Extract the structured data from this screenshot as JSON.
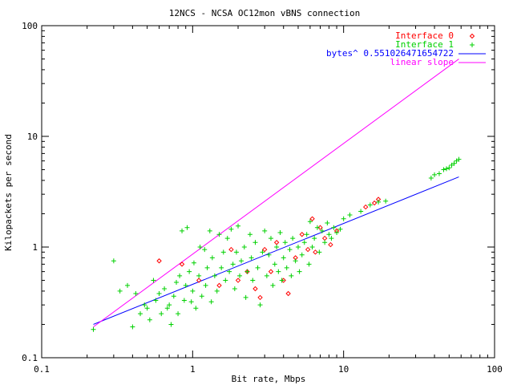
{
  "chart_data": {
    "type": "scatter",
    "title": "12NCS - NCSA OC12mon vBNS connection",
    "xlabel": "Bit rate, Mbps",
    "ylabel": "Kilopackets per second",
    "x_scale": "log",
    "y_scale": "log",
    "xlim": [
      0.1,
      100
    ],
    "ylim": [
      0.1,
      100
    ],
    "x_ticks": [
      "0.1",
      "1",
      "10",
      "100"
    ],
    "y_ticks": [
      "0.1",
      "1",
      "10",
      "100"
    ],
    "grid": false,
    "legend": "top-right",
    "series": [
      {
        "name": "Interface 0",
        "kind": "points",
        "marker": "diamond",
        "color": "#ff0000",
        "points": [
          [
            0.6,
            0.75
          ],
          [
            0.85,
            0.7
          ],
          [
            1.1,
            0.5
          ],
          [
            1.5,
            0.45
          ],
          [
            1.8,
            0.95
          ],
          [
            2.0,
            0.5
          ],
          [
            2.3,
            0.6
          ],
          [
            2.6,
            0.42
          ],
          [
            2.8,
            0.35
          ],
          [
            3.0,
            0.95
          ],
          [
            3.3,
            0.6
          ],
          [
            3.6,
            1.1
          ],
          [
            4.0,
            0.5
          ],
          [
            4.3,
            0.38
          ],
          [
            4.8,
            0.8
          ],
          [
            5.3,
            1.3
          ],
          [
            5.8,
            0.95
          ],
          [
            6.2,
            1.8
          ],
          [
            6.5,
            0.9
          ],
          [
            7.0,
            1.5
          ],
          [
            7.5,
            1.2
          ],
          [
            8.2,
            1.05
          ],
          [
            9.0,
            1.4
          ],
          [
            14.0,
            2.3
          ],
          [
            16.0,
            2.5
          ],
          [
            17.0,
            2.7
          ]
        ]
      },
      {
        "name": "Interface 1",
        "kind": "points",
        "marker": "plus",
        "color": "#00d000",
        "points": [
          [
            0.22,
            0.18
          ],
          [
            0.3,
            0.75
          ],
          [
            0.33,
            0.4
          ],
          [
            0.37,
            0.45
          ],
          [
            0.4,
            0.19
          ],
          [
            0.42,
            0.38
          ],
          [
            0.45,
            0.25
          ],
          [
            0.48,
            0.3
          ],
          [
            0.5,
            0.28
          ],
          [
            0.52,
            0.22
          ],
          [
            0.55,
            0.5
          ],
          [
            0.57,
            0.33
          ],
          [
            0.6,
            0.38
          ],
          [
            0.62,
            0.25
          ],
          [
            0.65,
            0.42
          ],
          [
            0.68,
            0.28
          ],
          [
            0.7,
            0.3
          ],
          [
            0.72,
            0.2
          ],
          [
            0.75,
            0.36
          ],
          [
            0.78,
            0.48
          ],
          [
            0.8,
            0.25
          ],
          [
            0.82,
            0.55
          ],
          [
            0.85,
            1.4
          ],
          [
            0.88,
            0.33
          ],
          [
            0.9,
            0.45
          ],
          [
            0.92,
            1.5
          ],
          [
            0.95,
            0.6
          ],
          [
            0.98,
            0.32
          ],
          [
            1.0,
            0.4
          ],
          [
            1.02,
            0.72
          ],
          [
            1.05,
            0.28
          ],
          [
            1.1,
            0.55
          ],
          [
            1.12,
            1.0
          ],
          [
            1.15,
            0.36
          ],
          [
            1.2,
            0.95
          ],
          [
            1.22,
            0.45
          ],
          [
            1.25,
            0.65
          ],
          [
            1.3,
            1.4
          ],
          [
            1.33,
            0.32
          ],
          [
            1.35,
            0.8
          ],
          [
            1.4,
            0.55
          ],
          [
            1.45,
            0.4
          ],
          [
            1.5,
            1.3
          ],
          [
            1.55,
            0.65
          ],
          [
            1.6,
            0.9
          ],
          [
            1.65,
            0.5
          ],
          [
            1.7,
            1.2
          ],
          [
            1.75,
            0.6
          ],
          [
            1.8,
            1.45
          ],
          [
            1.85,
            0.7
          ],
          [
            1.9,
            0.42
          ],
          [
            1.95,
            0.9
          ],
          [
            2.0,
            1.55
          ],
          [
            2.05,
            0.55
          ],
          [
            2.1,
            0.75
          ],
          [
            2.2,
            1.0
          ],
          [
            2.25,
            0.35
          ],
          [
            2.3,
            0.6
          ],
          [
            2.4,
            1.3
          ],
          [
            2.45,
            0.8
          ],
          [
            2.5,
            0.5
          ],
          [
            2.6,
            1.1
          ],
          [
            2.7,
            0.65
          ],
          [
            2.8,
            0.3
          ],
          [
            2.9,
            0.9
          ],
          [
            3.0,
            1.4
          ],
          [
            3.1,
            0.55
          ],
          [
            3.2,
            0.85
          ],
          [
            3.3,
            1.2
          ],
          [
            3.4,
            0.45
          ],
          [
            3.5,
            0.7
          ],
          [
            3.6,
            1.0
          ],
          [
            3.7,
            0.6
          ],
          [
            3.8,
            1.35
          ],
          [
            3.9,
            0.5
          ],
          [
            4.0,
            0.8
          ],
          [
            4.1,
            1.1
          ],
          [
            4.2,
            0.65
          ],
          [
            4.4,
            0.95
          ],
          [
            4.5,
            0.55
          ],
          [
            4.6,
            1.2
          ],
          [
            4.8,
            0.75
          ],
          [
            5.0,
            1.0
          ],
          [
            5.1,
            0.6
          ],
          [
            5.3,
            0.85
          ],
          [
            5.5,
            1.1
          ],
          [
            5.7,
            1.3
          ],
          [
            5.9,
            0.7
          ],
          [
            6.0,
            1.7
          ],
          [
            6.2,
            1.0
          ],
          [
            6.4,
            1.2
          ],
          [
            6.7,
            1.5
          ],
          [
            6.9,
            0.9
          ],
          [
            7.2,
            1.4
          ],
          [
            7.5,
            1.1
          ],
          [
            7.8,
            1.65
          ],
          [
            8.0,
            1.3
          ],
          [
            8.3,
            1.2
          ],
          [
            8.6,
            1.5
          ],
          [
            9.0,
            1.35
          ],
          [
            9.5,
            1.45
          ],
          [
            10.0,
            1.8
          ],
          [
            11.0,
            1.95
          ],
          [
            13.0,
            2.1
          ],
          [
            15.0,
            2.4
          ],
          [
            17.0,
            2.55
          ],
          [
            19.0,
            2.6
          ],
          [
            38.0,
            4.2
          ],
          [
            40.0,
            4.5
          ],
          [
            43.0,
            4.6
          ],
          [
            46.0,
            5.0
          ],
          [
            48.0,
            5.1
          ],
          [
            50.0,
            5.2
          ],
          [
            52.0,
            5.5
          ],
          [
            54.0,
            5.7
          ],
          [
            56.0,
            6.0
          ],
          [
            58.0,
            6.2
          ]
        ]
      },
      {
        "name": "bytes^ 0.551026471654722",
        "kind": "line",
        "color": "#0000ff",
        "points": [
          [
            0.22,
            0.2
          ],
          [
            58.0,
            4.3
          ]
        ]
      },
      {
        "name": "linear slope",
        "kind": "line",
        "color": "#ff00ff",
        "points": [
          [
            0.22,
            0.19
          ],
          [
            58.0,
            50.0
          ]
        ]
      }
    ]
  }
}
